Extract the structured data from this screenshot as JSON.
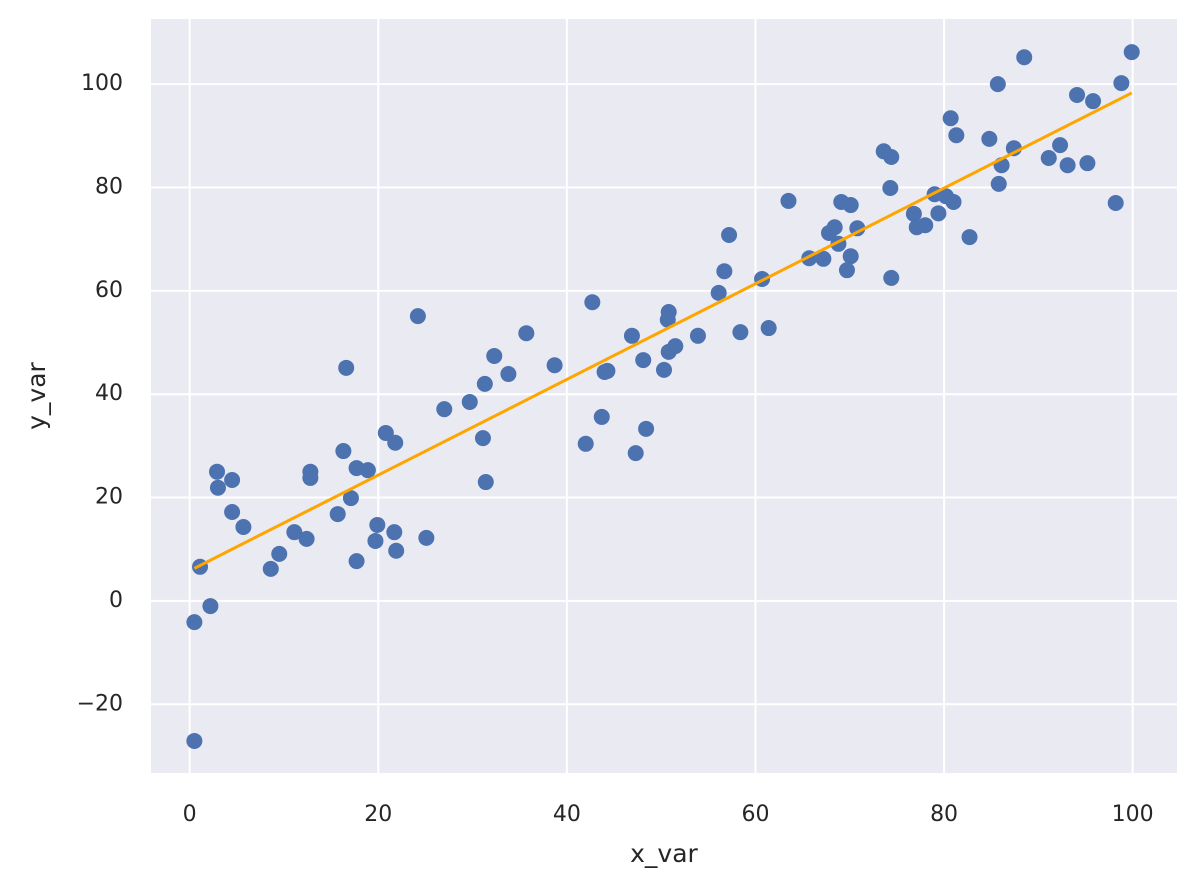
{
  "chart_data": {
    "type": "scatter",
    "x_label": "x_var",
    "y_label": "y_var",
    "xlim": [
      -4.1,
      104.7
    ],
    "ylim": [
      -33.3,
      112.6
    ],
    "xticks": [
      0,
      20,
      40,
      60,
      80,
      100
    ],
    "yticks": [
      {
        "value": -20,
        "label": "−20"
      },
      0,
      20,
      40,
      60,
      80,
      100
    ],
    "grid": true,
    "background": "#eaeaf2",
    "grid_color": "#ffffff",
    "series": [
      {
        "kind": "scatter",
        "color": "#4c72b0",
        "x": [
          0.5,
          0.5,
          1.1,
          2.2,
          2.9,
          3.0,
          4.5,
          4.5,
          5.7,
          8.6,
          9.5,
          11.1,
          12.4,
          12.8,
          12.8,
          15.7,
          16.3,
          16.6,
          17.1,
          17.7,
          17.7,
          18.9,
          19.7,
          19.9,
          20.8,
          21.7,
          21.8,
          21.9,
          24.2,
          25.1,
          27.0,
          29.7,
          31.1,
          31.3,
          31.4,
          32.3,
          33.8,
          35.7,
          38.7,
          42.0,
          42.7,
          43.7,
          44.0,
          44.3,
          46.9,
          47.3,
          48.1,
          48.4,
          50.3,
          50.7,
          50.8,
          50.8,
          51.5,
          53.9,
          56.1,
          56.7,
          57.2,
          58.4,
          60.7,
          61.4,
          63.5,
          65.7,
          67.2,
          67.8,
          68.4,
          68.8,
          69.1,
          69.7,
          70.1,
          70.1,
          70.8,
          73.6,
          74.4,
          74.3,
          74.4,
          76.8,
          77.1,
          78.0,
          79.0,
          79.4,
          80.2,
          80.7,
          81.0,
          81.3,
          82.7,
          84.8,
          85.7,
          85.8,
          86.1,
          87.4,
          88.5,
          91.1,
          92.3,
          93.1,
          94.1,
          95.2,
          95.8,
          98.2,
          98.8,
          99.9
        ],
        "values": [
          -27.1,
          -4.1,
          6.6,
          -1.0,
          25.0,
          21.9,
          23.4,
          17.2,
          14.3,
          6.2,
          9.1,
          13.3,
          12.0,
          23.8,
          25.0,
          16.8,
          29.0,
          45.1,
          19.9,
          25.7,
          7.7,
          25.3,
          11.6,
          14.7,
          32.5,
          13.3,
          30.6,
          9.7,
          55.1,
          12.2,
          37.1,
          38.5,
          31.5,
          42.0,
          23.0,
          47.4,
          43.9,
          51.8,
          45.6,
          30.4,
          57.8,
          35.6,
          44.3,
          44.5,
          51.3,
          28.6,
          46.6,
          33.3,
          44.7,
          54.4,
          55.9,
          48.2,
          49.3,
          51.3,
          59.6,
          63.8,
          70.8,
          52.0,
          62.3,
          52.8,
          77.4,
          66.3,
          66.2,
          71.2,
          72.3,
          69.1,
          77.2,
          64.0,
          76.6,
          66.7,
          72.1,
          87.0,
          85.9,
          79.9,
          62.5,
          74.9,
          72.3,
          72.7,
          78.7,
          75.0,
          78.3,
          93.4,
          77.2,
          90.1,
          70.4,
          89.4,
          100.0,
          80.7,
          84.3,
          87.6,
          105.2,
          85.7,
          88.2,
          84.3,
          97.9,
          84.7,
          96.7,
          77.0,
          100.2,
          106.2
        ]
      },
      {
        "kind": "line",
        "color": "#ffa500",
        "x": [
          0.5,
          99.9
        ],
        "values": [
          6.3,
          98.3
        ]
      }
    ]
  }
}
